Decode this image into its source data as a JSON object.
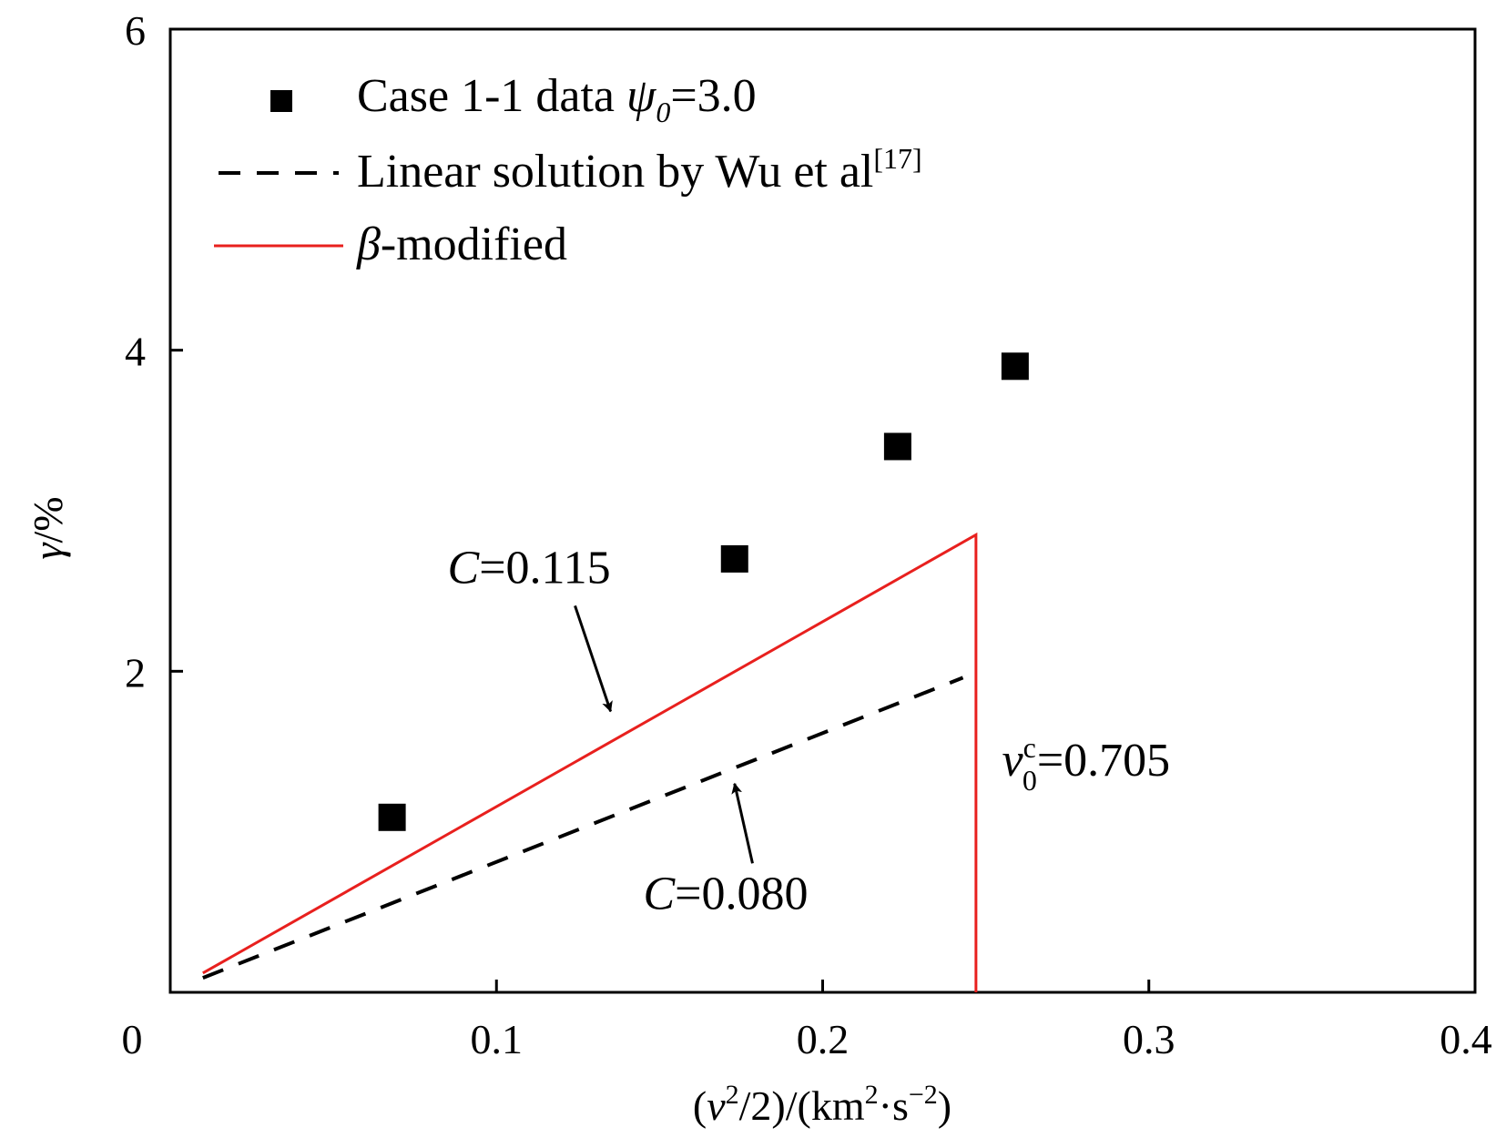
{
  "chart_data": {
    "type": "line",
    "x_ticks": [
      "0",
      "0.1",
      "0.2",
      "0.3",
      "0.4"
    ],
    "y_ticks": [
      "2",
      "4",
      "6"
    ],
    "xlim": [
      0,
      0.4
    ],
    "ylim": [
      0,
      6
    ],
    "grid": false,
    "legend_position": "top-left",
    "xlabel": {
      "pre": "(",
      "var": "v",
      "sup1": "2",
      "mid": "/2)/(km",
      "sup2": "2",
      "dot": "·s",
      "sup3": "−2",
      "post": ")"
    },
    "ylabel": {
      "var": "γ",
      "rest": "/%"
    },
    "series": [
      {
        "name": {
          "pre": "Case 1-1 data ",
          "sym": "ψ",
          "sub": "0",
          "post": "=3.0"
        },
        "kind": "scatter",
        "color": "#000000",
        "x": [
          0.068,
          0.173,
          0.223,
          0.259
        ],
        "y": [
          1.09,
          2.7,
          3.4,
          3.9
        ]
      },
      {
        "name": {
          "text": "Linear solution by Wu et al",
          "sup": "[17]"
        },
        "kind": "dashed-line",
        "color": "#000000",
        "x": [
          0.01,
          0.243
        ],
        "y": [
          0.09,
          1.96
        ]
      },
      {
        "name": {
          "sym": "β",
          "post": "-modified"
        },
        "kind": "solid-line",
        "color": "#e8201e",
        "x": [
          0.01,
          0.247,
          0.247
        ],
        "y": [
          0.12,
          2.85,
          0
        ]
      }
    ],
    "annotations": [
      {
        "id": "c115",
        "var": "C",
        "rest": "=0.115",
        "x": 0.085,
        "y": 2.55,
        "arrow_to": [
          0.135,
          1.75
        ]
      },
      {
        "id": "c080",
        "var": "C",
        "rest": "=0.080",
        "x": 0.145,
        "y": 0.52,
        "arrow_to": [
          0.173,
          1.3
        ]
      },
      {
        "id": "v0c",
        "var": "v",
        "sup": "c",
        "sub": "0",
        "rest": "=0.705",
        "x": 0.255,
        "y": 1.35
      }
    ]
  }
}
